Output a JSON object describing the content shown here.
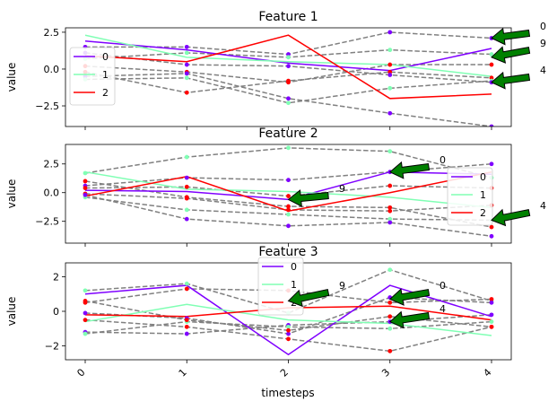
{
  "chart_data": [
    {
      "type": "line",
      "title": "Feature 1",
      "ylabel": "value",
      "xlabel": "",
      "x": [
        0,
        1,
        2,
        3,
        4
      ],
      "ylim": [
        -3.9,
        2.8
      ],
      "yticks": [
        -2.5,
        0.0,
        2.5
      ],
      "ytick_labels": [
        "−2.5",
        "0.0",
        "2.5"
      ],
      "legend": {
        "placement": "center-left"
      },
      "series": [
        {
          "name": "0",
          "color": "#7f00ff",
          "values": [
            1.9,
            1.3,
            0.4,
            -0.1,
            1.4
          ]
        },
        {
          "name": "1",
          "color": "#80ffb4",
          "values": [
            2.3,
            0.8,
            0.5,
            0.3,
            -0.5
          ]
        },
        {
          "name": "2",
          "color": "#ff0000",
          "values": [
            0.9,
            0.5,
            2.3,
            -2.0,
            -1.7
          ]
        }
      ],
      "background_series": [
        {
          "values": [
            1.5,
            1.5,
            1.0,
            2.5,
            2.1
          ],
          "marker": "#7f00ff"
        },
        {
          "values": [
            0.7,
            1.1,
            0.8,
            1.3,
            1.0
          ],
          "marker": "#80ffb4"
        },
        {
          "values": [
            0.2,
            -0.2,
            -0.9,
            0.3,
            0.3
          ],
          "marker": "#ff0000"
        },
        {
          "values": [
            -0.2,
            -1.6,
            -0.8,
            -0.2,
            -0.6
          ],
          "marker": "#ff0000"
        },
        {
          "values": [
            -0.5,
            -0.3,
            -2.0,
            -3.0,
            -3.9
          ],
          "marker": "#7f00ff"
        },
        {
          "values": [
            -0.7,
            -0.6,
            -2.3,
            -1.3,
            -0.8
          ],
          "marker": "#80ffb4"
        },
        {
          "values": [
            1.1,
            0.3,
            0.2,
            -0.4,
            -0.9
          ],
          "marker": "#7f00ff"
        }
      ],
      "annotations": [
        {
          "label": "0",
          "point": [
            4,
            2.1
          ]
        },
        {
          "label": "9",
          "point": [
            4,
            0.8
          ]
        },
        {
          "label": "4",
          "point": [
            4,
            -0.9
          ]
        }
      ]
    },
    {
      "type": "line",
      "title": "Feature 2",
      "ylabel": "value",
      "xlabel": "",
      "x": [
        0,
        1,
        2,
        3,
        4
      ],
      "ylim": [
        -4.4,
        4.2
      ],
      "yticks": [
        -2.5,
        0.0,
        2.5
      ],
      "ytick_labels": [
        "−2.5",
        "0.0",
        "2.5"
      ],
      "legend": {
        "placement": "center-right"
      },
      "series": [
        {
          "name": "0",
          "color": "#7f00ff",
          "values": [
            0.2,
            0.1,
            -0.6,
            1.8,
            1.6
          ]
        },
        {
          "name": "1",
          "color": "#80ffb4",
          "values": [
            1.8,
            0.3,
            0.1,
            -0.4,
            -1.3
          ]
        },
        {
          "name": "2",
          "color": "#ff0000",
          "values": [
            -0.3,
            1.4,
            -1.6,
            0.0,
            1.8
          ]
        }
      ],
      "background_series": [
        {
          "values": [
            1.7,
            3.1,
            3.9,
            3.6,
            1.3
          ],
          "marker": "#80ffb4"
        },
        {
          "values": [
            0.6,
            1.3,
            1.1,
            1.8,
            2.5
          ],
          "marker": "#7f00ff"
        },
        {
          "values": [
            0.4,
            0.5,
            -0.3,
            0.6,
            0.4
          ],
          "marker": "#ff0000"
        },
        {
          "values": [
            -0.1,
            -0.5,
            -1.5,
            -1.6,
            -1.1
          ],
          "marker": "#ff0000"
        },
        {
          "values": [
            -0.4,
            -1.5,
            -1.9,
            -2.3,
            -2.4
          ],
          "marker": "#80ffb4"
        },
        {
          "values": [
            -0.2,
            -2.3,
            -2.9,
            -2.6,
            -3.8
          ],
          "marker": "#7f00ff"
        },
        {
          "values": [
            1.0,
            -0.4,
            -1.2,
            -1.3,
            -3.0
          ],
          "marker": "#ff0000"
        }
      ],
      "annotations": [
        {
          "label": "0",
          "point": [
            3,
            1.8
          ]
        },
        {
          "label": "9",
          "point": [
            2,
            -0.6
          ]
        },
        {
          "label": "4",
          "point": [
            4,
            -2.4
          ]
        }
      ]
    },
    {
      "type": "line",
      "title": "Feature 3",
      "ylabel": "value",
      "xlabel": "timesteps",
      "x": [
        0,
        1,
        2,
        3,
        4
      ],
      "x_tick_labels": [
        "0",
        "1",
        "2",
        "3",
        "4"
      ],
      "ylim": [
        -2.8,
        2.8
      ],
      "yticks": [
        -2,
        0,
        2
      ],
      "ytick_labels": [
        "−2",
        "0",
        "2"
      ],
      "legend": {
        "placement": "upper-center"
      },
      "series": [
        {
          "name": "0",
          "color": "#7f00ff",
          "values": [
            1.0,
            1.5,
            -2.5,
            1.5,
            -0.3
          ]
        },
        {
          "name": "1",
          "color": "#80ffb4",
          "values": [
            -0.6,
            0.4,
            -0.5,
            -0.7,
            -1.4
          ]
        },
        {
          "name": "2",
          "color": "#ff0000",
          "values": [
            -0.2,
            -0.3,
            0.2,
            0.3,
            -0.5
          ]
        }
      ],
      "background_series": [
        {
          "values": [
            1.2,
            1.6,
            -0.1,
            2.4,
            0.6
          ],
          "marker": "#80ffb4"
        },
        {
          "values": [
            0.5,
            1.3,
            1.2,
            0.5,
            0.7
          ],
          "marker": "#ff0000"
        },
        {
          "values": [
            -0.1,
            -0.4,
            -1.3,
            0.8,
            0.5
          ],
          "marker": "#7f00ff"
        },
        {
          "values": [
            -0.5,
            -0.9,
            -1.6,
            -2.3,
            -0.9
          ],
          "marker": "#ff0000"
        },
        {
          "values": [
            -1.2,
            -1.3,
            -0.8,
            -0.6,
            -0.2
          ],
          "marker": "#7f00ff"
        },
        {
          "values": [
            -1.3,
            -0.6,
            -0.9,
            -1.0,
            -0.6
          ],
          "marker": "#80ffb4"
        },
        {
          "values": [
            0.6,
            -0.5,
            -1.1,
            -0.3,
            -0.9
          ],
          "marker": "#ff0000"
        }
      ],
      "annotations": [
        {
          "label": "0",
          "point": [
            3,
            0.7
          ]
        },
        {
          "label": "9",
          "point": [
            2,
            0.6
          ]
        },
        {
          "label": "4",
          "point": [
            3,
            -0.6
          ]
        }
      ]
    }
  ]
}
